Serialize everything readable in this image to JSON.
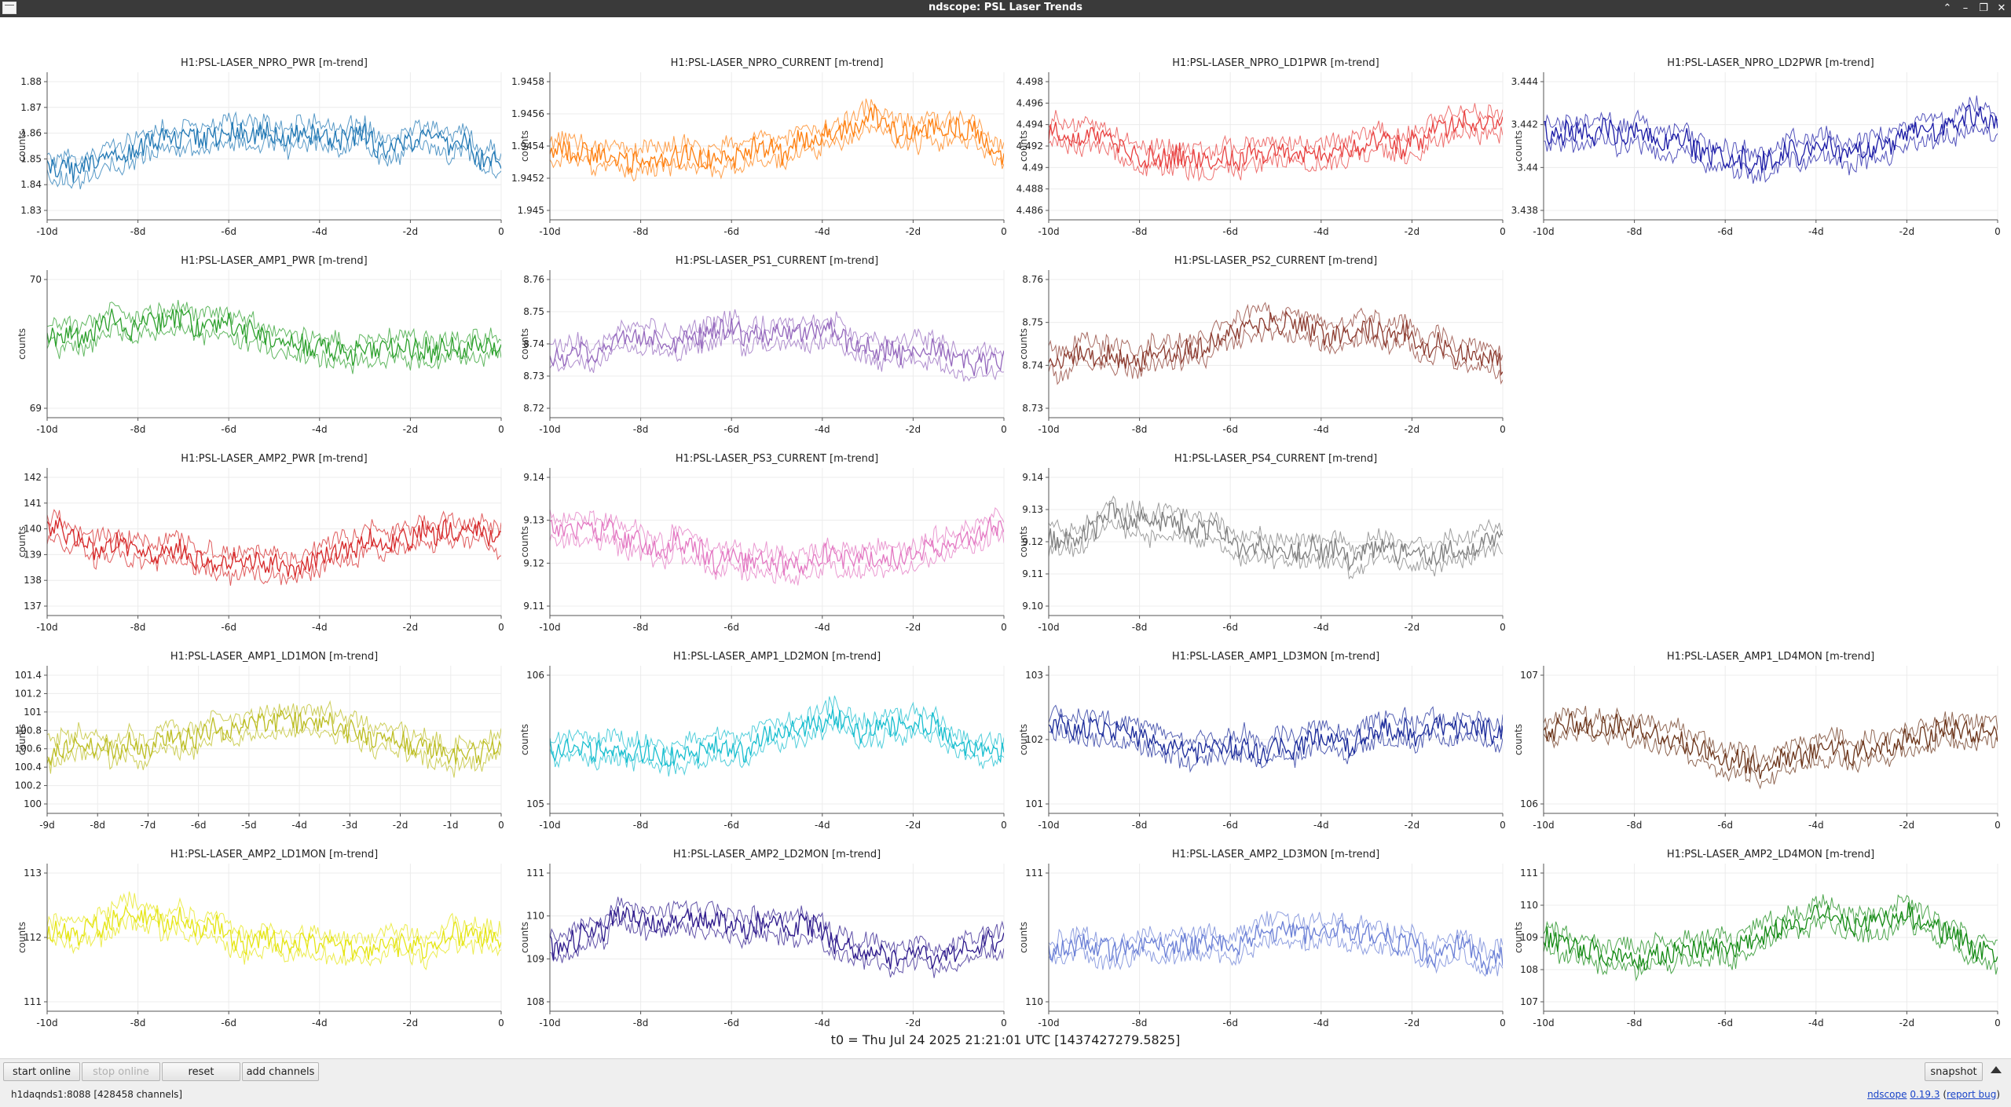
{
  "window": {
    "title": "ndscope: PSL Laser Trends",
    "controls": [
      "⌃",
      "–",
      "❐",
      "✕"
    ]
  },
  "ylabel_text": "counts",
  "plots": [
    {
      "title": "H1:PSL-LASER_NPRO_PWR [m-trend]",
      "color": "#1f77b4",
      "yticks": [
        "1.88",
        "1.87",
        "1.86",
        "1.85",
        "1.84",
        "1.83"
      ],
      "xticks": [
        "-10d",
        "-8d",
        "-6d",
        "-4d",
        "-2d",
        "0"
      ]
    },
    {
      "title": "H1:PSL-LASER_NPRO_CURRENT [m-trend]",
      "color": "#ff7f0e",
      "yticks": [
        "1.9458",
        "1.9456",
        "1.9454",
        "1.9452",
        "1.945"
      ],
      "xticks": [
        "-10d",
        "-8d",
        "-6d",
        "-4d",
        "-2d",
        "0"
      ]
    },
    {
      "title": "H1:PSL-LASER_NPRO_LD1PWR [m-trend]",
      "color": "#e8403f",
      "yticks": [
        "4.498",
        "4.496",
        "4.494",
        "4.492",
        "4.49",
        "4.488",
        "4.486"
      ],
      "xticks": [
        "-10d",
        "-8d",
        "-6d",
        "-4d",
        "-2d",
        "0"
      ]
    },
    {
      "title": "H1:PSL-LASER_NPRO_LD2PWR [m-trend]",
      "color": "#1a1aa6",
      "yticks": [
        "3.444",
        "3.442",
        "3.44",
        "3.438"
      ],
      "xticks": [
        "-10d",
        "-8d",
        "-6d",
        "-4d",
        "-2d",
        "0"
      ]
    },
    {
      "title": "H1:PSL-LASER_AMP1_PWR [m-trend]",
      "color": "#2ca02c",
      "yticks": [
        "70",
        "69"
      ],
      "xticks": [
        "-10d",
        "-8d",
        "-6d",
        "-4d",
        "-2d",
        "0"
      ]
    },
    {
      "title": "H1:PSL-LASER_PS1_CURRENT [m-trend]",
      "color": "#9467bd",
      "yticks": [
        "8.76",
        "8.75",
        "8.74",
        "8.73",
        "8.72"
      ],
      "xticks": [
        "-10d",
        "-8d",
        "-6d",
        "-4d",
        "-2d",
        "0"
      ]
    },
    {
      "title": "H1:PSL-LASER_PS2_CURRENT [m-trend]",
      "color": "#8c3b2f",
      "yticks": [
        "8.76",
        "8.75",
        "8.74",
        "8.73"
      ],
      "xticks": [
        "-10d",
        "-8d",
        "-6d",
        "-4d",
        "-2d",
        "0"
      ]
    },
    null,
    {
      "title": "H1:PSL-LASER_AMP2_PWR [m-trend]",
      "color": "#d62728",
      "yticks": [
        "142",
        "141",
        "140",
        "139",
        "138",
        "137"
      ],
      "xticks": [
        "-10d",
        "-8d",
        "-6d",
        "-4d",
        "-2d",
        "0"
      ]
    },
    {
      "title": "H1:PSL-LASER_PS3_CURRENT [m-trend]",
      "color": "#e377c2",
      "yticks": [
        "9.14",
        "9.13",
        "9.12",
        "9.11"
      ],
      "xticks": [
        "-10d",
        "-8d",
        "-6d",
        "-4d",
        "-2d",
        "0"
      ]
    },
    {
      "title": "H1:PSL-LASER_PS4_CURRENT [m-trend]",
      "color": "#7f7f7f",
      "yticks": [
        "9.14",
        "9.13",
        "9.12",
        "9.11",
        "9.10"
      ],
      "xticks": [
        "-10d",
        "-8d",
        "-6d",
        "-4d",
        "-2d",
        "0"
      ]
    },
    null,
    {
      "title": "H1:PSL-LASER_AMP1_LD1MON [m-trend]",
      "color": "#bcbd22",
      "yticks": [
        "101.4",
        "101.2",
        "101",
        "100.8",
        "100.6",
        "100.4",
        "100.2",
        "100"
      ],
      "xticks": [
        "-9d",
        "-8d",
        "-7d",
        "-6d",
        "-5d",
        "-4d",
        "-3d",
        "-2d",
        "-1d",
        "0"
      ]
    },
    {
      "title": "H1:PSL-LASER_AMP1_LD2MON [m-trend]",
      "color": "#17becf",
      "yticks": [
        "106",
        "105"
      ],
      "xticks": [
        "-10d",
        "-8d",
        "-6d",
        "-4d",
        "-2d",
        "0"
      ]
    },
    {
      "title": "H1:PSL-LASER_AMP1_LD3MON [m-trend]",
      "color": "#1a2a9a",
      "yticks": [
        "103",
        "102",
        "101"
      ],
      "xticks": [
        "-10d",
        "-8d",
        "-6d",
        "-4d",
        "-2d",
        "0"
      ]
    },
    {
      "title": "H1:PSL-LASER_AMP1_LD4MON [m-trend]",
      "color": "#6b3419",
      "yticks": [
        "107",
        "106"
      ],
      "xticks": [
        "-10d",
        "-8d",
        "-6d",
        "-4d",
        "-2d",
        "0"
      ]
    },
    {
      "title": "H1:PSL-LASER_AMP2_LD1MON [m-trend]",
      "color": "#e5e512",
      "yticks": [
        "113",
        "112",
        "111"
      ],
      "xticks": [
        "-10d",
        "-8d",
        "-6d",
        "-4d",
        "-2d",
        "0"
      ]
    },
    {
      "title": "H1:PSL-LASER_AMP2_LD2MON [m-trend]",
      "color": "#2e1a8c",
      "yticks": [
        "111",
        "110",
        "109",
        "108"
      ],
      "xticks": [
        "-10d",
        "-8d",
        "-6d",
        "-4d",
        "-2d",
        "0"
      ]
    },
    {
      "title": "H1:PSL-LASER_AMP2_LD3MON [m-trend]",
      "color": "#6a7fd6",
      "yticks": [
        "111",
        "110"
      ],
      "xticks": [
        "-10d",
        "-8d",
        "-6d",
        "-4d",
        "-2d",
        "0"
      ]
    },
    {
      "title": "H1:PSL-LASER_AMP2_LD4MON [m-trend]",
      "color": "#138a13",
      "yticks": [
        "111",
        "110",
        "109",
        "108",
        "107"
      ],
      "xticks": [
        "-10d",
        "-8d",
        "-6d",
        "-4d",
        "-2d",
        "0"
      ]
    }
  ],
  "t0_label": "t0 = Thu Jul 24 2025 21:21:01 UTC [1437427279.5825]",
  "buttons": {
    "start_online": "start online",
    "stop_online": "stop online",
    "reset": "reset",
    "add_channels": "add channels",
    "snapshot": "snapshot"
  },
  "status": {
    "server": "h1daqnds1:8088",
    "channels": "[428458 channels]",
    "app_link": "ndscope",
    "version": "0.19.3",
    "report_bug": "report bug"
  }
}
